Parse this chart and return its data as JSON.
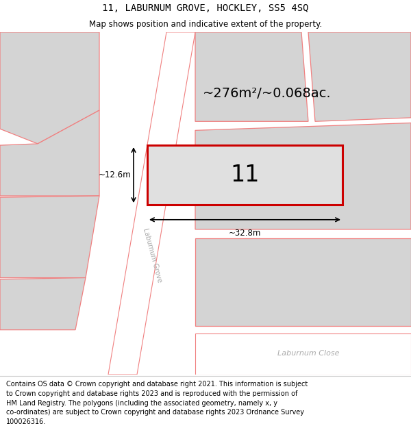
{
  "title": "11, LABURNUM GROVE, HOCKLEY, SS5 4SQ",
  "subtitle": "Map shows position and indicative extent of the property.",
  "footer_lines": [
    "Contains OS data © Crown copyright and database right 2021. This information is subject",
    "to Crown copyright and database rights 2023 and is reproduced with the permission of",
    "HM Land Registry. The polygons (including the associated geometry, namely x, y",
    "co-ordinates) are subject to Crown copyright and database rights 2023 Ordnance Survey",
    "100026316."
  ],
  "bg_color": "#ebebeb",
  "road_fill": "#ffffff",
  "property_fill": "#e0e0e0",
  "property_outline": "#cc0000",
  "neighbor_fill": "#d4d4d4",
  "neighbor_outline": "#f08080",
  "road_outline": "#f08080",
  "area_text": "~276m²/~0.068ac.",
  "property_label": "11",
  "dim_width": "~32.8m",
  "dim_height": "~12.6m",
  "title_fontsize": 10,
  "subtitle_fontsize": 8.5,
  "footer_fontsize": 7,
  "road_label_color": "#aaaaaa",
  "laburnum_close_label": "Laburnum Close",
  "laburnum_grove_label": "Laburnum Grove"
}
